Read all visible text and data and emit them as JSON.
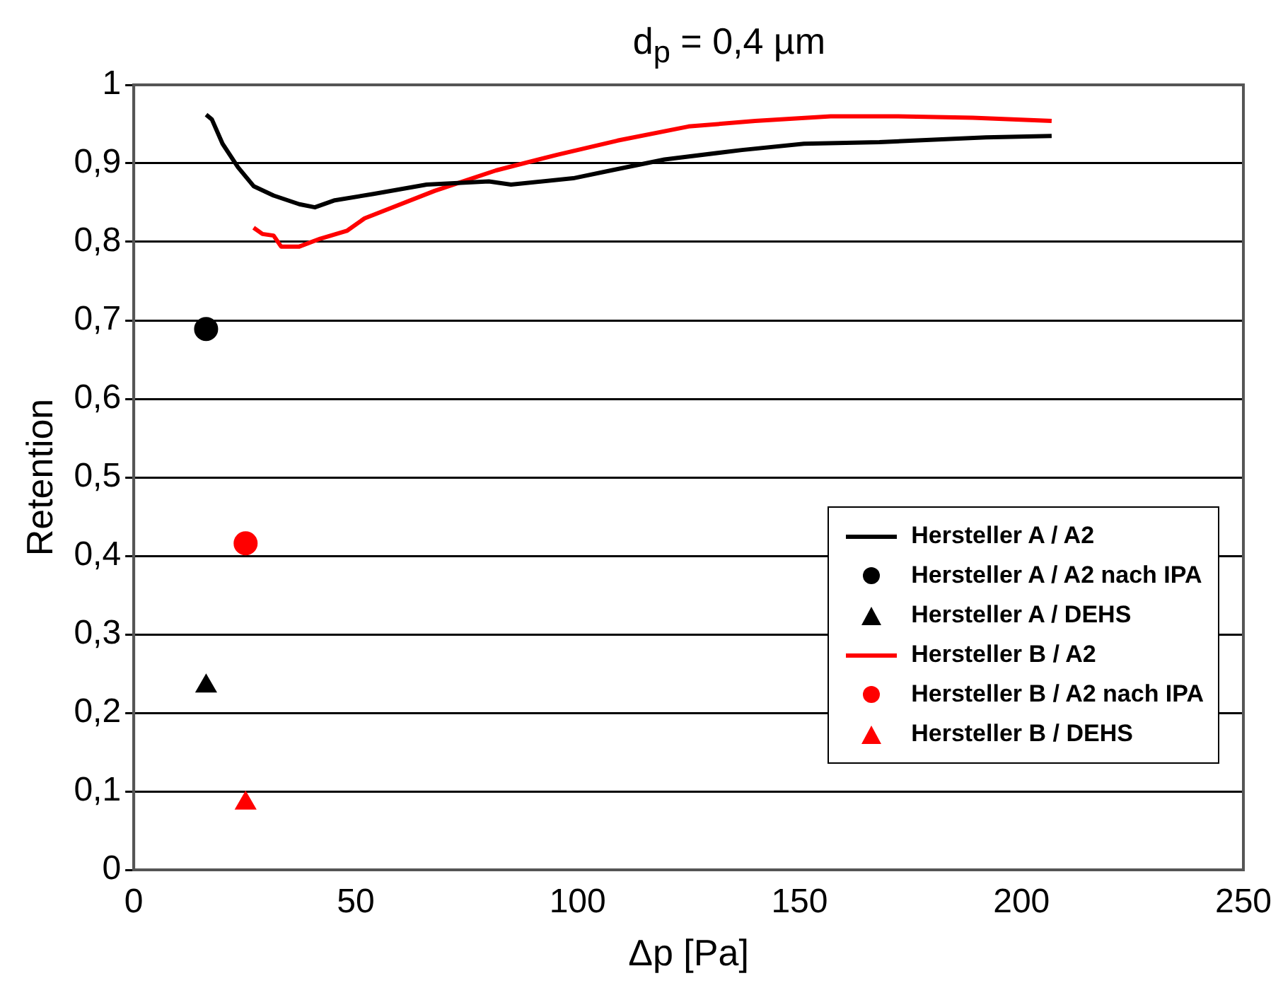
{
  "chart_data": {
    "type": "line",
    "title": "d$_{p}$ = 0,4 µm",
    "xlabel": "Δp [Pa]",
    "ylabel": "Retention",
    "xlim": [
      0,
      250
    ],
    "xticks": [
      0,
      50,
      100,
      150,
      200,
      250
    ],
    "ylim": [
      0,
      1
    ],
    "yticks": [
      0,
      {
        "value": 0.1,
        "label": "0,1"
      },
      {
        "value": 0.2,
        "label": "0,2"
      },
      {
        "value": 0.3,
        "label": "0,3"
      },
      {
        "value": 0.4,
        "label": "0,4"
      },
      {
        "value": 0.5,
        "label": "0,5"
      },
      {
        "value": 0.6,
        "label": "0,6"
      },
      {
        "value": 0.7,
        "label": "0,7"
      },
      {
        "value": 0.8,
        "label": "0,8"
      },
      {
        "value": 0.9,
        "label": "0,9"
      },
      1
    ],
    "grid": "y",
    "legend": "bottom right",
    "series": [
      {
        "type": "line",
        "name": "Hersteller A / A2",
        "color": "#000000",
        "marker": "none",
        "x": [
          16.3,
          17.6,
          20,
          23.5,
          27,
          31.5,
          37.3,
          40.8,
          45.3,
          54,
          66,
          80,
          85,
          99,
          107.5,
          119.6,
          137,
          151,
          168,
          192,
          206.8
        ],
        "values": [
          0.962,
          0.956,
          0.925,
          0.895,
          0.871,
          0.859,
          0.848,
          0.844,
          0.853,
          0.861,
          0.873,
          0.877,
          0.873,
          0.881,
          0.891,
          0.905,
          0.917,
          0.925,
          0.927,
          0.933,
          0.935
        ]
      },
      {
        "type": "scatter",
        "name": "Hersteller A / A2 nach IPA",
        "color": "#000000",
        "marker": "circle",
        "x": [
          16.3
        ],
        "values": [
          0.689
        ]
      },
      {
        "type": "scatter",
        "name": "Hersteller A / DEHS",
        "color": "#000000",
        "marker": "triangle",
        "x": [
          16.3
        ],
        "values": [
          0.234
        ]
      },
      {
        "type": "line",
        "name": "Hersteller B / A2",
        "color": "#ff0000",
        "marker": "none",
        "x": [
          27,
          29,
          31.5,
          33.2,
          37.3,
          42,
          48,
          52,
          67.8,
          81.6,
          95.4,
          109,
          125,
          140,
          157,
          171,
          189,
          206.8
        ],
        "values": [
          0.818,
          0.81,
          0.808,
          0.794,
          0.794,
          0.804,
          0.814,
          0.83,
          0.865,
          0.891,
          0.911,
          0.929,
          0.947,
          0.954,
          0.96,
          0.96,
          0.958,
          0.954
        ]
      },
      {
        "type": "scatter",
        "name": "Hersteller B / A2 nach IPA",
        "color": "#ff0000",
        "marker": "circle",
        "x": [
          25.2
        ],
        "values": [
          0.416
        ]
      },
      {
        "type": "scatter",
        "name": "Hersteller B / DEHS",
        "color": "#ff0000",
        "marker": "triangle",
        "x": [
          25.2
        ],
        "values": [
          0.085
        ]
      }
    ]
  }
}
